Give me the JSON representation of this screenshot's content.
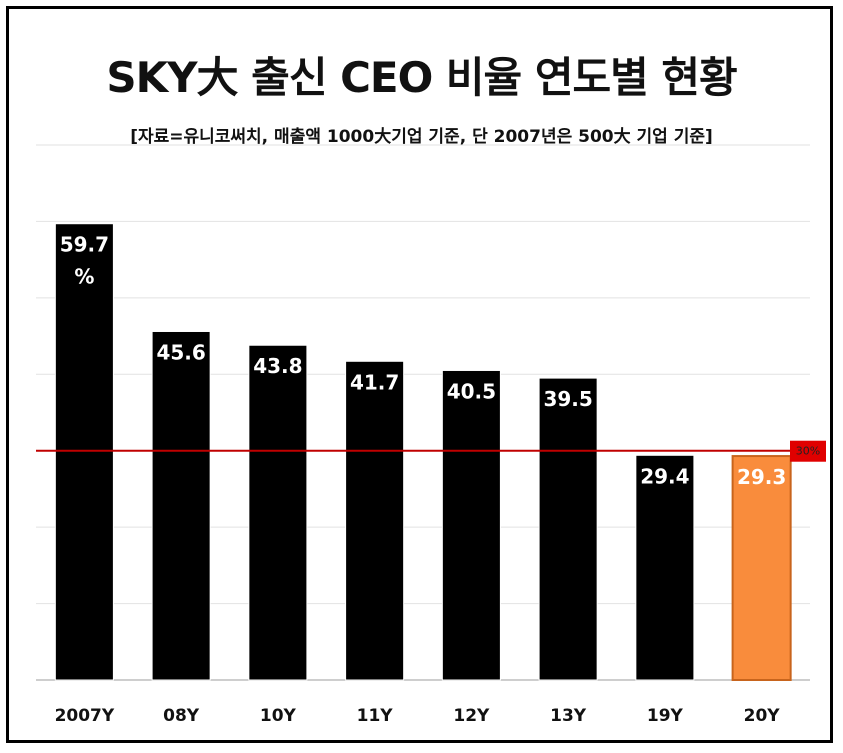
{
  "chart_data": {
    "type": "bar",
    "title": "SKY大 출신 CEO 비율 연도별 현황",
    "subtitle": "[자료=유니코써치, 매출액 1000大기업  기준, 단 2007년은 500大 기업 기준]",
    "categories": [
      "2007Y",
      "08Y",
      "10Y",
      "11Y",
      "12Y",
      "13Y",
      "19Y",
      "20Y"
    ],
    "values": [
      59.7,
      45.6,
      43.8,
      41.7,
      40.5,
      39.5,
      29.4,
      29.3
    ],
    "value_labels": [
      "59.7\n%",
      "45.6",
      "43.8",
      "41.7",
      "40.5",
      "39.5",
      "29.4",
      "29.3"
    ],
    "ylim": [
      0,
      70
    ],
    "ytick_step": 10,
    "grid": true,
    "xlabel": "",
    "ylabel": "",
    "reference_line": {
      "value": 30,
      "label": "30%",
      "color": "#e00000"
    },
    "colors": {
      "bar": "#000000",
      "highlight": "#f98c3c",
      "highlight_index": 7
    }
  }
}
